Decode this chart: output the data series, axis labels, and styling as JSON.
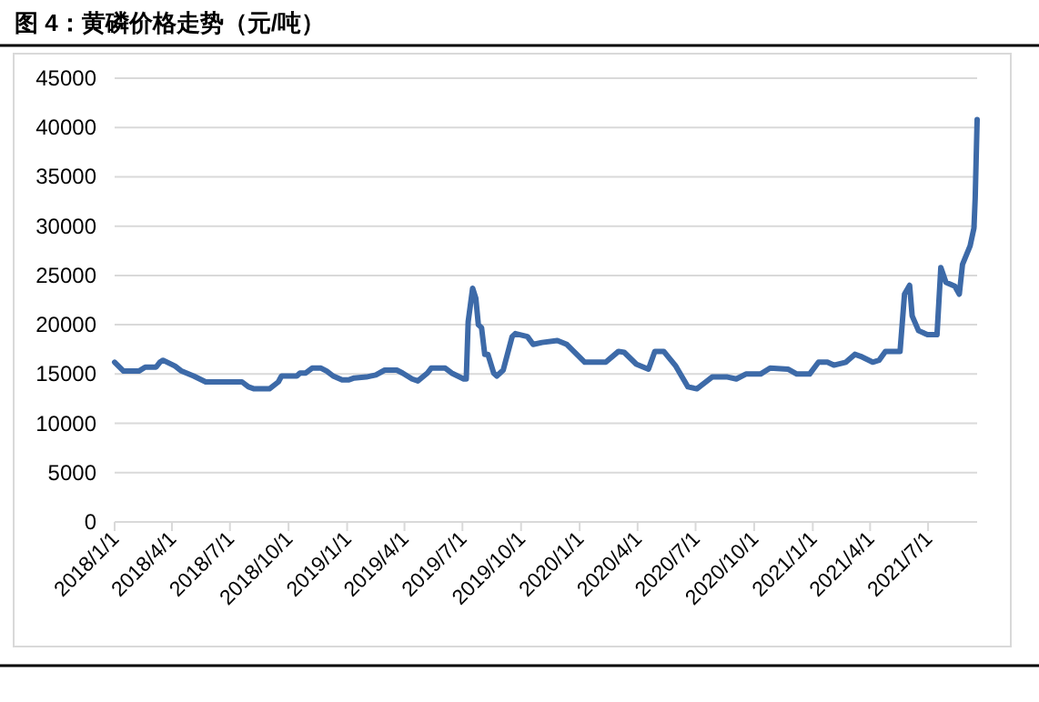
{
  "chart_data": {
    "type": "line",
    "title": "图 4：黄磷价格走势（元/吨）",
    "x": [
      "2018-01-01",
      "2018-01-15",
      "2018-02-08",
      "2018-02-18",
      "2018-03-07",
      "2018-03-13",
      "2018-03-18",
      "2018-04-06",
      "2018-04-16",
      "2018-05-05",
      "2018-05-24",
      "2018-07-20",
      "2018-07-30",
      "2018-08-08",
      "2018-09-01",
      "2018-09-15",
      "2018-09-20",
      "2018-10-14",
      "2018-10-19",
      "2018-10-28",
      "2018-11-07",
      "2018-11-21",
      "2018-11-30",
      "2018-12-10",
      "2018-12-24",
      "2019-01-03",
      "2019-01-12",
      "2019-01-31",
      "2019-02-15",
      "2019-03-01",
      "2019-03-20",
      "2019-03-29",
      "2019-04-13",
      "2019-04-22",
      "2019-05-07",
      "2019-05-13",
      "2019-06-04",
      "2019-06-14",
      "2019-07-03",
      "2019-07-07",
      "2019-07-10",
      "2019-07-17",
      "2019-07-22",
      "2019-07-26",
      "2019-07-31",
      "2019-08-05",
      "2019-08-10",
      "2019-08-19",
      "2019-08-24",
      "2019-09-03",
      "2019-09-17",
      "2019-09-22",
      "2019-10-11",
      "2019-10-20",
      "2019-11-03",
      "2019-11-27",
      "2019-12-12",
      "2020-01-09",
      "2020-02-11",
      "2020-03-02",
      "2020-03-11",
      "2020-03-30",
      "2020-04-18",
      "2020-04-28",
      "2020-05-12",
      "2020-05-31",
      "2020-06-19",
      "2020-07-03",
      "2020-07-27",
      "2020-08-20",
      "2020-09-03",
      "2020-09-18",
      "2020-10-11",
      "2020-10-26",
      "2020-11-23",
      "2020-12-07",
      "2020-12-27",
      "2021-01-10",
      "2021-01-24",
      "2021-02-03",
      "2021-02-22",
      "2021-03-08",
      "2021-03-17",
      "2021-04-05",
      "2021-04-15",
      "2021-04-25",
      "2021-05-18",
      "2021-05-25",
      "2021-06-02",
      "2021-06-06",
      "2021-06-16",
      "2021-06-30",
      "2021-07-15",
      "2021-07-21",
      "2021-07-29",
      "2021-08-12",
      "2021-08-19",
      "2021-08-24",
      "2021-09-05",
      "2021-09-11",
      "2021-09-13",
      "2021-09-16"
    ],
    "series": [
      {
        "color": "#3d6aa8",
        "values": [
          16200,
          15300,
          15300,
          15700,
          15700,
          16200,
          16400,
          15800,
          15300,
          14800,
          14200,
          14200,
          13700,
          13500,
          13500,
          14200,
          14800,
          14800,
          15100,
          15100,
          15600,
          15600,
          15300,
          14800,
          14400,
          14400,
          14600,
          14700,
          14900,
          15400,
          15400,
          15100,
          14500,
          14300,
          15100,
          15600,
          15600,
          15100,
          14500,
          14500,
          20300,
          23700,
          22700,
          20000,
          19700,
          17000,
          17000,
          15100,
          14800,
          15400,
          18800,
          19100,
          18800,
          18000,
          18200,
          18400,
          18000,
          16200,
          16200,
          17300,
          17200,
          16000,
          15500,
          17300,
          17300,
          15800,
          13700,
          13500,
          14700,
          14700,
          14500,
          15000,
          15000,
          15600,
          15500,
          15000,
          15000,
          16200,
          16200,
          15900,
          16200,
          17000,
          16800,
          16200,
          16400,
          17300,
          17300,
          23100,
          24000,
          20900,
          19400,
          19000,
          19000,
          25800,
          24300,
          23900,
          23100,
          26100,
          28000,
          29800,
          32900,
          40800
        ]
      }
    ],
    "xlim": [
      "2018-01-01",
      "2021-09-16"
    ],
    "xticks": [
      {
        "value": "2018-01-01",
        "label": "2018/1/1"
      },
      {
        "value": "2018-04-01",
        "label": "2018/4/1"
      },
      {
        "value": "2018-07-01",
        "label": "2018/7/1"
      },
      {
        "value": "2018-10-01",
        "label": "2018/10/1"
      },
      {
        "value": "2019-01-01",
        "label": "2019/1/1"
      },
      {
        "value": "2019-04-01",
        "label": "2019/4/1"
      },
      {
        "value": "2019-07-01",
        "label": "2019/7/1"
      },
      {
        "value": "2019-10-01",
        "label": "2019/10/1"
      },
      {
        "value": "2020-01-01",
        "label": "2020/1/1"
      },
      {
        "value": "2020-04-01",
        "label": "2020/4/1"
      },
      {
        "value": "2020-07-01",
        "label": "2020/7/1"
      },
      {
        "value": "2020-10-01",
        "label": "2020/10/1"
      },
      {
        "value": "2021-01-01",
        "label": "2021/1/1"
      },
      {
        "value": "2021-04-01",
        "label": "2021/4/1"
      },
      {
        "value": "2021-07-01",
        "label": "2021/7/1"
      }
    ],
    "ylim": [
      0,
      45000
    ],
    "yticks": [
      0,
      5000,
      10000,
      15000,
      20000,
      25000,
      30000,
      35000,
      40000,
      45000
    ],
    "grid": "y",
    "marker": "none",
    "line_style": "solid"
  }
}
